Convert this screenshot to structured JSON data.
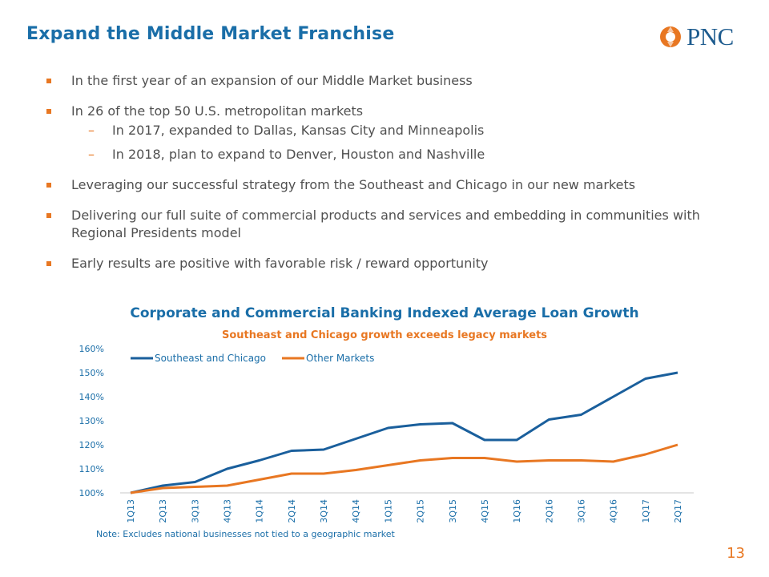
{
  "header": {
    "title": "Expand the Middle Market Franchise",
    "logo_text": "PNC"
  },
  "bullets": {
    "b1": "In the first year of an expansion of our Middle Market business",
    "b2": "In 26 of the top 50 U.S. metropolitan markets",
    "b2_sub1": "In 2017, expanded to Dallas, Kansas City and Minneapolis",
    "b2_sub2": "In 2018, plan to expand to Denver, Houston and Nashville",
    "b3": "Leveraging our successful strategy from the Southeast and Chicago in our new markets",
    "b4": "Delivering our full suite of commercial products and services and embedding in communities with Regional Presidents model",
    "b5": "Early results are positive with favorable risk / reward opportunity"
  },
  "chart_data": {
    "type": "line",
    "title": "Corporate and Commercial Banking Indexed Average Loan Growth",
    "subtitle": "Southeast and Chicago growth exceeds legacy markets",
    "categories": [
      "1Q13",
      "2Q13",
      "3Q13",
      "4Q13",
      "1Q14",
      "2Q14",
      "3Q14",
      "4Q14",
      "1Q15",
      "2Q15",
      "3Q15",
      "4Q15",
      "1Q16",
      "2Q16",
      "3Q16",
      "4Q16",
      "1Q17",
      "2Q17"
    ],
    "series": [
      {
        "name": "Southeast and Chicago",
        "color": "#1a5f9c",
        "values": [
          100,
          103,
          104.5,
          110,
          113.5,
          117.5,
          118,
          122.5,
          127,
          128.5,
          129,
          122,
          122,
          130.5,
          132.5,
          140,
          147.5,
          150
        ]
      },
      {
        "name": "Other Markets",
        "color": "#e87722",
        "values": [
          100,
          102,
          102.5,
          103,
          105.5,
          108,
          108,
          109.5,
          111.5,
          113.5,
          114.5,
          114.5,
          113,
          113.5,
          113.5,
          113,
          116,
          120
        ]
      }
    ],
    "ylim": [
      100,
      160
    ],
    "yticks": [
      "100%",
      "110%",
      "120%",
      "130%",
      "140%",
      "150%",
      "160%"
    ],
    "legend_position": "top-left",
    "grid": false
  },
  "footer": {
    "note": "Note: Excludes national businesses not tied to a geographic market",
    "page_number": "13"
  }
}
